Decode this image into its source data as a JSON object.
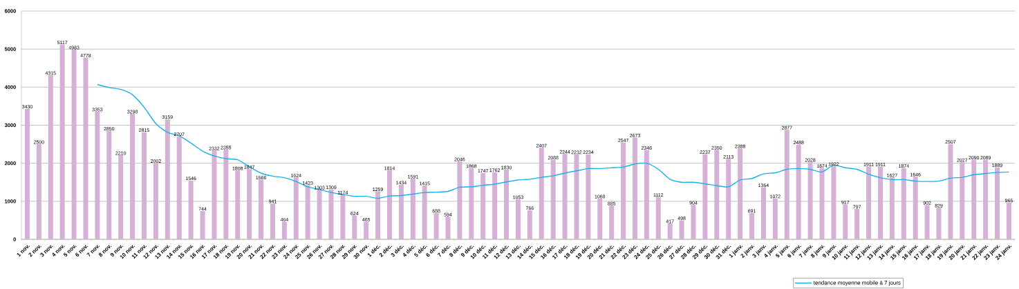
{
  "chart_data": {
    "type": "bar",
    "categories": [
      "1 nov.",
      "2 nov.",
      "3 nov.",
      "4 nov.",
      "5 nov.",
      "6 nov.",
      "7 nov.",
      "8 nov.",
      "9 nov.",
      "10 nov.",
      "11 nov.",
      "12 nov.",
      "13 nov.",
      "14 nov.",
      "15 nov.",
      "16 nov.",
      "17 nov.",
      "18 nov.",
      "19 nov.",
      "20 nov.",
      "21 nov.",
      "22 nov.",
      "23 nov.",
      "24 nov.",
      "25 nov.",
      "26 nov.",
      "27 nov.",
      "28 nov.",
      "29 nov.",
      "30 nov.",
      "1 déc.",
      "2 déc.",
      "3 déc.",
      "4 déc.",
      "5 déc.",
      "6 déc.",
      "7 déc.",
      "8 déc.",
      "9 déc.",
      "10 déc.",
      "11 déc.",
      "12 déc.",
      "13 déc.",
      "14 déc.",
      "15 déc.",
      "16 déc.",
      "17 déc.",
      "18 déc.",
      "19 déc.",
      "20 déc.",
      "21 déc.",
      "22 déc.",
      "23 déc.",
      "24 déc.",
      "25 déc.",
      "26 déc.",
      "27 déc.",
      "28 déc.",
      "29 déc.",
      "30 déc.",
      "31 déc.",
      "1 janv.",
      "2 janv.",
      "3 janv.",
      "4 janv.",
      "5 janv.",
      "6 janv.",
      "7 janv.",
      "8 janv.",
      "9 janv.",
      "10 janv.",
      "11 janv.",
      "12 janv.",
      "13 janv.",
      "14 janv.",
      "15 janv.",
      "16 janv.",
      "17 janv.",
      "18 janv.",
      "19 janv.",
      "20 janv.",
      "21 janv.",
      "22 janv.",
      "23 janv.",
      "24 janv."
    ],
    "series": [
      {
        "color": "#d6b1d6",
        "data_labels": true,
        "values": [
          3430,
          2500,
          4315,
          5117,
          4983,
          4778,
          3353,
          2850,
          2210,
          3298,
          2815,
          2002,
          3159,
          2707,
          1546,
          744,
          2332,
          2355,
          1808,
          1847,
          1566,
          941,
          464,
          1624,
          1423,
          1303,
          1309,
          1174,
          624,
          465,
          1259,
          1814,
          1434,
          1591,
          1415,
          688,
          594,
          2046,
          1868,
          1747,
          1762,
          1830,
          1053,
          766,
          2407,
          2088,
          2244,
          2232,
          2234,
          1068,
          885,
          2547,
          2673,
          2346,
          1112,
          417,
          498,
          904,
          2237,
          2350,
          2113,
          2388,
          691,
          1364,
          1072,
          2877,
          2488,
          2028,
          1874,
          1922,
          917,
          797,
          1911,
          1911,
          1627,
          1874,
          1646,
          902,
          829,
          2507,
          2027,
          2090,
          2089,
          1889,
          965
        ]
      },
      {
        "type": "line",
        "name": "tendance moyenne mobile à 7 jours",
        "color": "#18b2ea",
        "values": [
          null,
          null,
          null,
          null,
          null,
          null,
          4070,
          3990,
          3940,
          3800,
          3470,
          3040,
          2810,
          2720,
          2530,
          2320,
          2190,
          2120,
          2090,
          1910,
          1740,
          1660,
          1620,
          1520,
          1380,
          1310,
          1230,
          1180,
          1130,
          1130,
          1080,
          1140,
          1150,
          1190,
          1230,
          1240,
          1260,
          1370,
          1380,
          1420,
          1450,
          1510,
          1560,
          1580,
          1630,
          1670,
          1740,
          1800,
          1860,
          1860,
          1880,
          1900,
          1980,
          2000,
          1840,
          1580,
          1500,
          1500,
          1460,
          1410,
          1380,
          1560,
          1600,
          1720,
          1750,
          1840,
          1860,
          1840,
          1770,
          1950,
          1880,
          1840,
          1710,
          1620,
          1570,
          1570,
          1530,
          1520,
          1530,
          1610,
          1630,
          1700,
          1730,
          1760,
          1770
        ]
      }
    ],
    "ylim": [
      0,
      6000
    ],
    "yticks": [
      0,
      1000,
      2000,
      3000,
      4000,
      5000,
      6000
    ],
    "grid": "y",
    "legend": "bottom right"
  }
}
